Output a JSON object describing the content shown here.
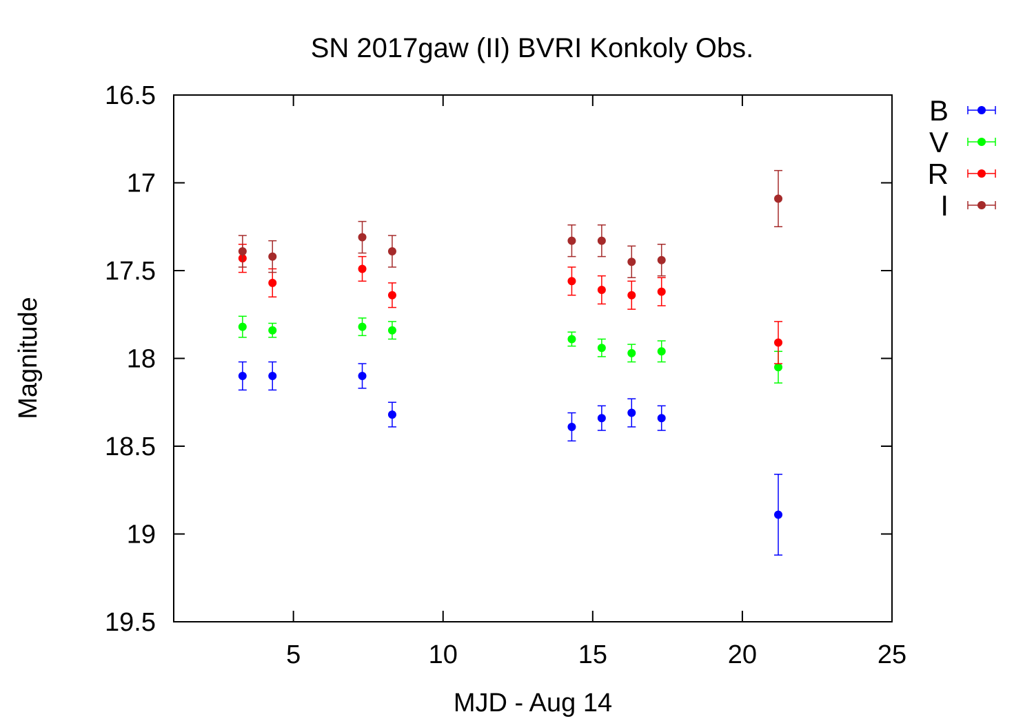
{
  "chart_data": {
    "type": "scatter",
    "title": "SN 2017gaw (II) BVRI Konkoly Obs.",
    "xlabel": "MJD - Aug 14",
    "ylabel": "Magnitude",
    "xlim": [
      1,
      25
    ],
    "ylim": [
      19.5,
      16.5
    ],
    "y_inverted": true,
    "x_ticks": [
      5,
      10,
      15,
      20,
      25
    ],
    "y_ticks": [
      16.5,
      17,
      17.5,
      18,
      18.5,
      19,
      19.5
    ],
    "x_tick_labels": [
      "5",
      "10",
      "15",
      "20",
      "25"
    ],
    "y_tick_labels": [
      "16.5",
      "17",
      "17.5",
      "18",
      "18.5",
      "19",
      "19.5"
    ],
    "grid": false,
    "legend_position": "outside-top-right",
    "series": [
      {
        "name": "B",
        "color": "#0000ff",
        "points": [
          {
            "x": 3.3,
            "y": 18.1,
            "err": 0.08
          },
          {
            "x": 4.3,
            "y": 18.1,
            "err": 0.08
          },
          {
            "x": 7.3,
            "y": 18.1,
            "err": 0.07
          },
          {
            "x": 8.3,
            "y": 18.32,
            "err": 0.07
          },
          {
            "x": 14.3,
            "y": 18.39,
            "err": 0.08
          },
          {
            "x": 15.3,
            "y": 18.34,
            "err": 0.07
          },
          {
            "x": 16.3,
            "y": 18.31,
            "err": 0.08
          },
          {
            "x": 17.3,
            "y": 18.34,
            "err": 0.07
          },
          {
            "x": 21.2,
            "y": 18.89,
            "err": 0.23
          }
        ]
      },
      {
        "name": "V",
        "color": "#00ff00",
        "points": [
          {
            "x": 3.3,
            "y": 17.82,
            "err": 0.06
          },
          {
            "x": 4.3,
            "y": 17.84,
            "err": 0.04
          },
          {
            "x": 7.3,
            "y": 17.82,
            "err": 0.05
          },
          {
            "x": 8.3,
            "y": 17.84,
            "err": 0.05
          },
          {
            "x": 14.3,
            "y": 17.89,
            "err": 0.04
          },
          {
            "x": 15.3,
            "y": 17.94,
            "err": 0.05
          },
          {
            "x": 16.3,
            "y": 17.97,
            "err": 0.05
          },
          {
            "x": 17.3,
            "y": 17.96,
            "err": 0.06
          },
          {
            "x": 21.2,
            "y": 18.05,
            "err": 0.09
          }
        ]
      },
      {
        "name": "R",
        "color": "#ff0000",
        "points": [
          {
            "x": 3.3,
            "y": 17.43,
            "err": 0.08
          },
          {
            "x": 4.3,
            "y": 17.57,
            "err": 0.08
          },
          {
            "x": 7.3,
            "y": 17.49,
            "err": 0.07
          },
          {
            "x": 8.3,
            "y": 17.64,
            "err": 0.07
          },
          {
            "x": 14.3,
            "y": 17.56,
            "err": 0.08
          },
          {
            "x": 15.3,
            "y": 17.61,
            "err": 0.08
          },
          {
            "x": 16.3,
            "y": 17.64,
            "err": 0.08
          },
          {
            "x": 17.3,
            "y": 17.62,
            "err": 0.08
          },
          {
            "x": 21.2,
            "y": 17.91,
            "err": 0.12
          }
        ]
      },
      {
        "name": "I",
        "color": "#a52a2a",
        "points": [
          {
            "x": 3.3,
            "y": 17.39,
            "err": 0.09
          },
          {
            "x": 4.3,
            "y": 17.42,
            "err": 0.09
          },
          {
            "x": 7.3,
            "y": 17.31,
            "err": 0.09
          },
          {
            "x": 8.3,
            "y": 17.39,
            "err": 0.09
          },
          {
            "x": 14.3,
            "y": 17.33,
            "err": 0.09
          },
          {
            "x": 15.3,
            "y": 17.33,
            "err": 0.09
          },
          {
            "x": 16.3,
            "y": 17.45,
            "err": 0.09
          },
          {
            "x": 17.3,
            "y": 17.44,
            "err": 0.09
          },
          {
            "x": 21.2,
            "y": 17.09,
            "err": 0.16
          }
        ]
      }
    ]
  }
}
